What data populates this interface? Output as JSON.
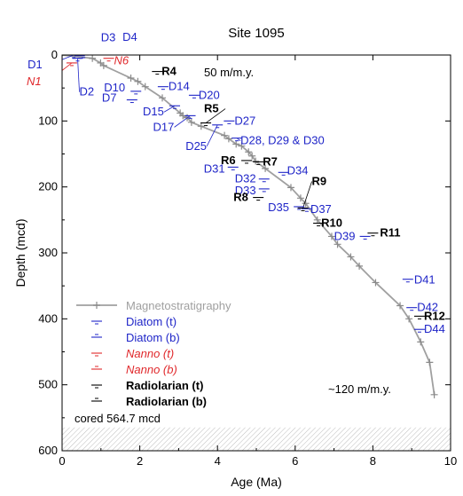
{
  "chart_data": {
    "type": "scatter",
    "title": "Site 1095",
    "xlabel": "Age (Ma)",
    "ylabel": "Depth (mcd)",
    "xlim": [
      0,
      10
    ],
    "ylim": [
      600,
      0
    ],
    "xticks": [
      "0",
      "2",
      "4",
      "6",
      "8",
      "10"
    ],
    "yticks": [
      "0",
      "100",
      "200",
      "300",
      "400",
      "500",
      "600"
    ],
    "annotations": {
      "rate_top": "50 m/m.y.",
      "rate_bottom": "~120 m/m.y.",
      "cored": "cored  564.7 mcd"
    },
    "cored_depth": 564.7,
    "colors": {
      "magneto": "#a0a0a0",
      "diatom": "#1f25c8",
      "nanno": "#e0282b",
      "radiolarian": "#000000",
      "hatch": "#bdbdbd"
    },
    "legend": {
      "placement": "bottom-left",
      "entries": [
        {
          "label": "Magnetostratigraphy",
          "color": "#a0a0a0",
          "style": "magneto"
        },
        {
          "label": "Diatom (t)",
          "color": "#1f25c8",
          "style": "t",
          "italic": false,
          "bold": false
        },
        {
          "label": "Diatom (b)",
          "color": "#1f25c8",
          "style": "b",
          "italic": false,
          "bold": false
        },
        {
          "label": "Nanno (t)",
          "color": "#e0282b",
          "style": "t",
          "italic": true,
          "bold": false
        },
        {
          "label": "Nanno (b)",
          "color": "#e0282b",
          "style": "b",
          "italic": true,
          "bold": false
        },
        {
          "label": "Radiolarian (t)",
          "color": "#000000",
          "style": "t",
          "italic": false,
          "bold": true
        },
        {
          "label": "Radiolarian (b)",
          "color": "#000000",
          "style": "b",
          "italic": false,
          "bold": true
        }
      ]
    },
    "magneto": {
      "x": [
        0,
        0.78,
        0.99,
        1.07,
        1.77,
        1.95,
        2.14,
        2.58,
        3.04,
        3.11,
        3.22,
        3.33,
        3.58,
        4.18,
        4.29,
        4.48,
        4.62,
        4.8,
        4.89,
        4.98,
        5.23,
        5.89,
        6.14,
        6.27,
        6.57,
        6.94,
        7.09,
        7.43,
        7.65,
        8.07,
        8.7,
        8.93,
        9.23,
        9.46,
        9.58
      ],
      "y": [
        0,
        5,
        12,
        16,
        35,
        40,
        48,
        65,
        88,
        92,
        95,
        102,
        108,
        122,
        127,
        135,
        138,
        147,
        153,
        161,
        172,
        201,
        217,
        225,
        250,
        275,
        287,
        306,
        320,
        345,
        380,
        400,
        435,
        466,
        515
      ]
    },
    "diatom": [
      {
        "x": 0.3,
        "y": 0,
        "label": "D1"
      },
      {
        "x": 0.45,
        "y": 1,
        "label": "D3"
      },
      {
        "x": 0.55,
        "y": 0,
        "label": "D4"
      },
      {
        "x": 0.4,
        "y": 5,
        "label": "D2"
      },
      {
        "x": 1.9,
        "y": 55,
        "label": "D10"
      },
      {
        "x": 1.8,
        "y": 68,
        "label": "D7"
      },
      {
        "x": 2.6,
        "y": 48,
        "label": "D14"
      },
      {
        "x": 3.4,
        "y": 61,
        "label": "D20"
      },
      {
        "x": 2.9,
        "y": 77,
        "label": "D15"
      },
      {
        "x": 3.3,
        "y": 92,
        "label": "D17"
      },
      {
        "x": 4.3,
        "y": 100,
        "label": "D27"
      },
      {
        "x": 4.0,
        "y": 106,
        "label": "D25"
      },
      {
        "x": 4.5,
        "y": 126,
        "label": "D28, D29 & D30"
      },
      {
        "x": 4.4,
        "y": 170,
        "label": "D31"
      },
      {
        "x": 5.7,
        "y": 178,
        "label": "D34"
      },
      {
        "x": 5.2,
        "y": 188,
        "label": "D32"
      },
      {
        "x": 5.2,
        "y": 203,
        "label": "D33"
      },
      {
        "x": 6.1,
        "y": 230,
        "label": "D35"
      },
      {
        "x": 6.3,
        "y": 233,
        "label": "D37"
      },
      {
        "x": 7.8,
        "y": 275,
        "label": "D39"
      },
      {
        "x": 8.9,
        "y": 340,
        "label": "D41"
      },
      {
        "x": 9.0,
        "y": 383,
        "label": "D42"
      },
      {
        "x": 9.2,
        "y": 416,
        "label": "D44"
      }
    ],
    "nanno": [
      {
        "x": 0.25,
        "y": 12,
        "label": "N1"
      },
      {
        "x": 1.2,
        "y": 5,
        "label": "N6"
      }
    ],
    "radiolarian": [
      {
        "x": 2.45,
        "y": 25,
        "label": "R4"
      },
      {
        "x": 3.7,
        "y": 103,
        "label": "R5"
      },
      {
        "x": 4.75,
        "y": 160,
        "label": "R6"
      },
      {
        "x": 5.05,
        "y": 162,
        "label": "R7"
      },
      {
        "x": 5.05,
        "y": 216,
        "label": "R8"
      },
      {
        "x": 6.2,
        "y": 232,
        "label": "R9"
      },
      {
        "x": 6.6,
        "y": 255,
        "label": "R10"
      },
      {
        "x": 8.0,
        "y": 270,
        "label": "R11"
      },
      {
        "x": 9.2,
        "y": 396,
        "label": "R12"
      }
    ]
  }
}
